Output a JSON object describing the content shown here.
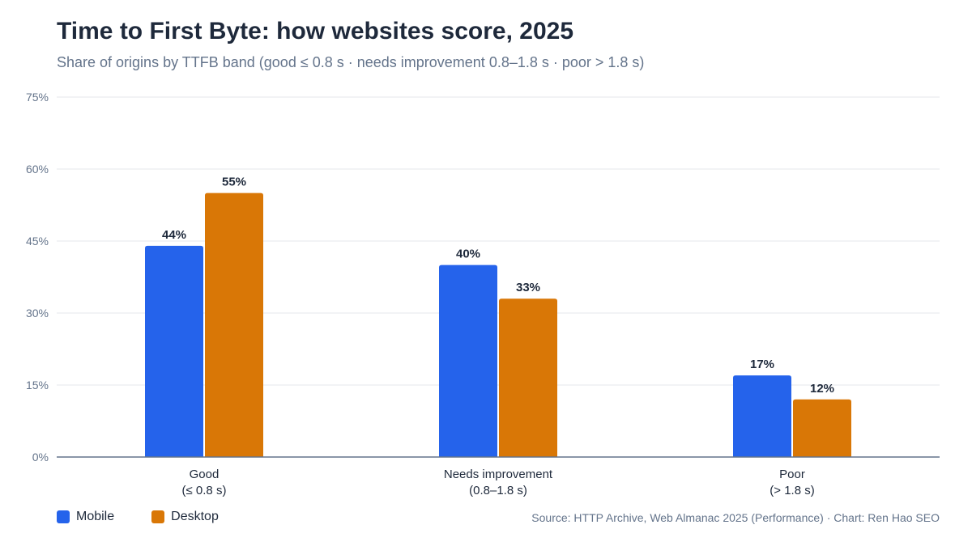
{
  "title": "Time to First Byte: how websites score, 2025",
  "subtitle": "Share of origins by TTFB band (good ≤ 0.8 s · needs improvement 0.8–1.8 s · poor > 1.8 s)",
  "source": "Source: HTTP Archive, Web Almanac 2025 (Performance) · Chart: Ren Hao SEO",
  "colors": {
    "mobile": "#2563eb",
    "desktop": "#d97706",
    "grid": "#e5e7eb",
    "axis": "#64748b"
  },
  "chart_data": {
    "type": "bar",
    "categories": [
      [
        "Good",
        "(≤ 0.8 s)"
      ],
      [
        "Needs improvement",
        "(0.8–1.8 s)"
      ],
      [
        "Poor",
        "(> 1.8 s)"
      ]
    ],
    "series": [
      {
        "name": "Mobile",
        "values": [
          44,
          40,
          17
        ]
      },
      {
        "name": "Desktop",
        "values": [
          55,
          33,
          12
        ]
      }
    ],
    "value_labels": [
      [
        "44%",
        "40%",
        "17%"
      ],
      [
        "55%",
        "33%",
        "12%"
      ]
    ],
    "ylim": [
      0,
      75
    ],
    "yticks": [
      0,
      15,
      30,
      45,
      60,
      75
    ],
    "ytick_labels": [
      "0%",
      "15%",
      "30%",
      "45%",
      "60%",
      "75%"
    ],
    "grid": true,
    "legend_position": "bottom-left"
  }
}
